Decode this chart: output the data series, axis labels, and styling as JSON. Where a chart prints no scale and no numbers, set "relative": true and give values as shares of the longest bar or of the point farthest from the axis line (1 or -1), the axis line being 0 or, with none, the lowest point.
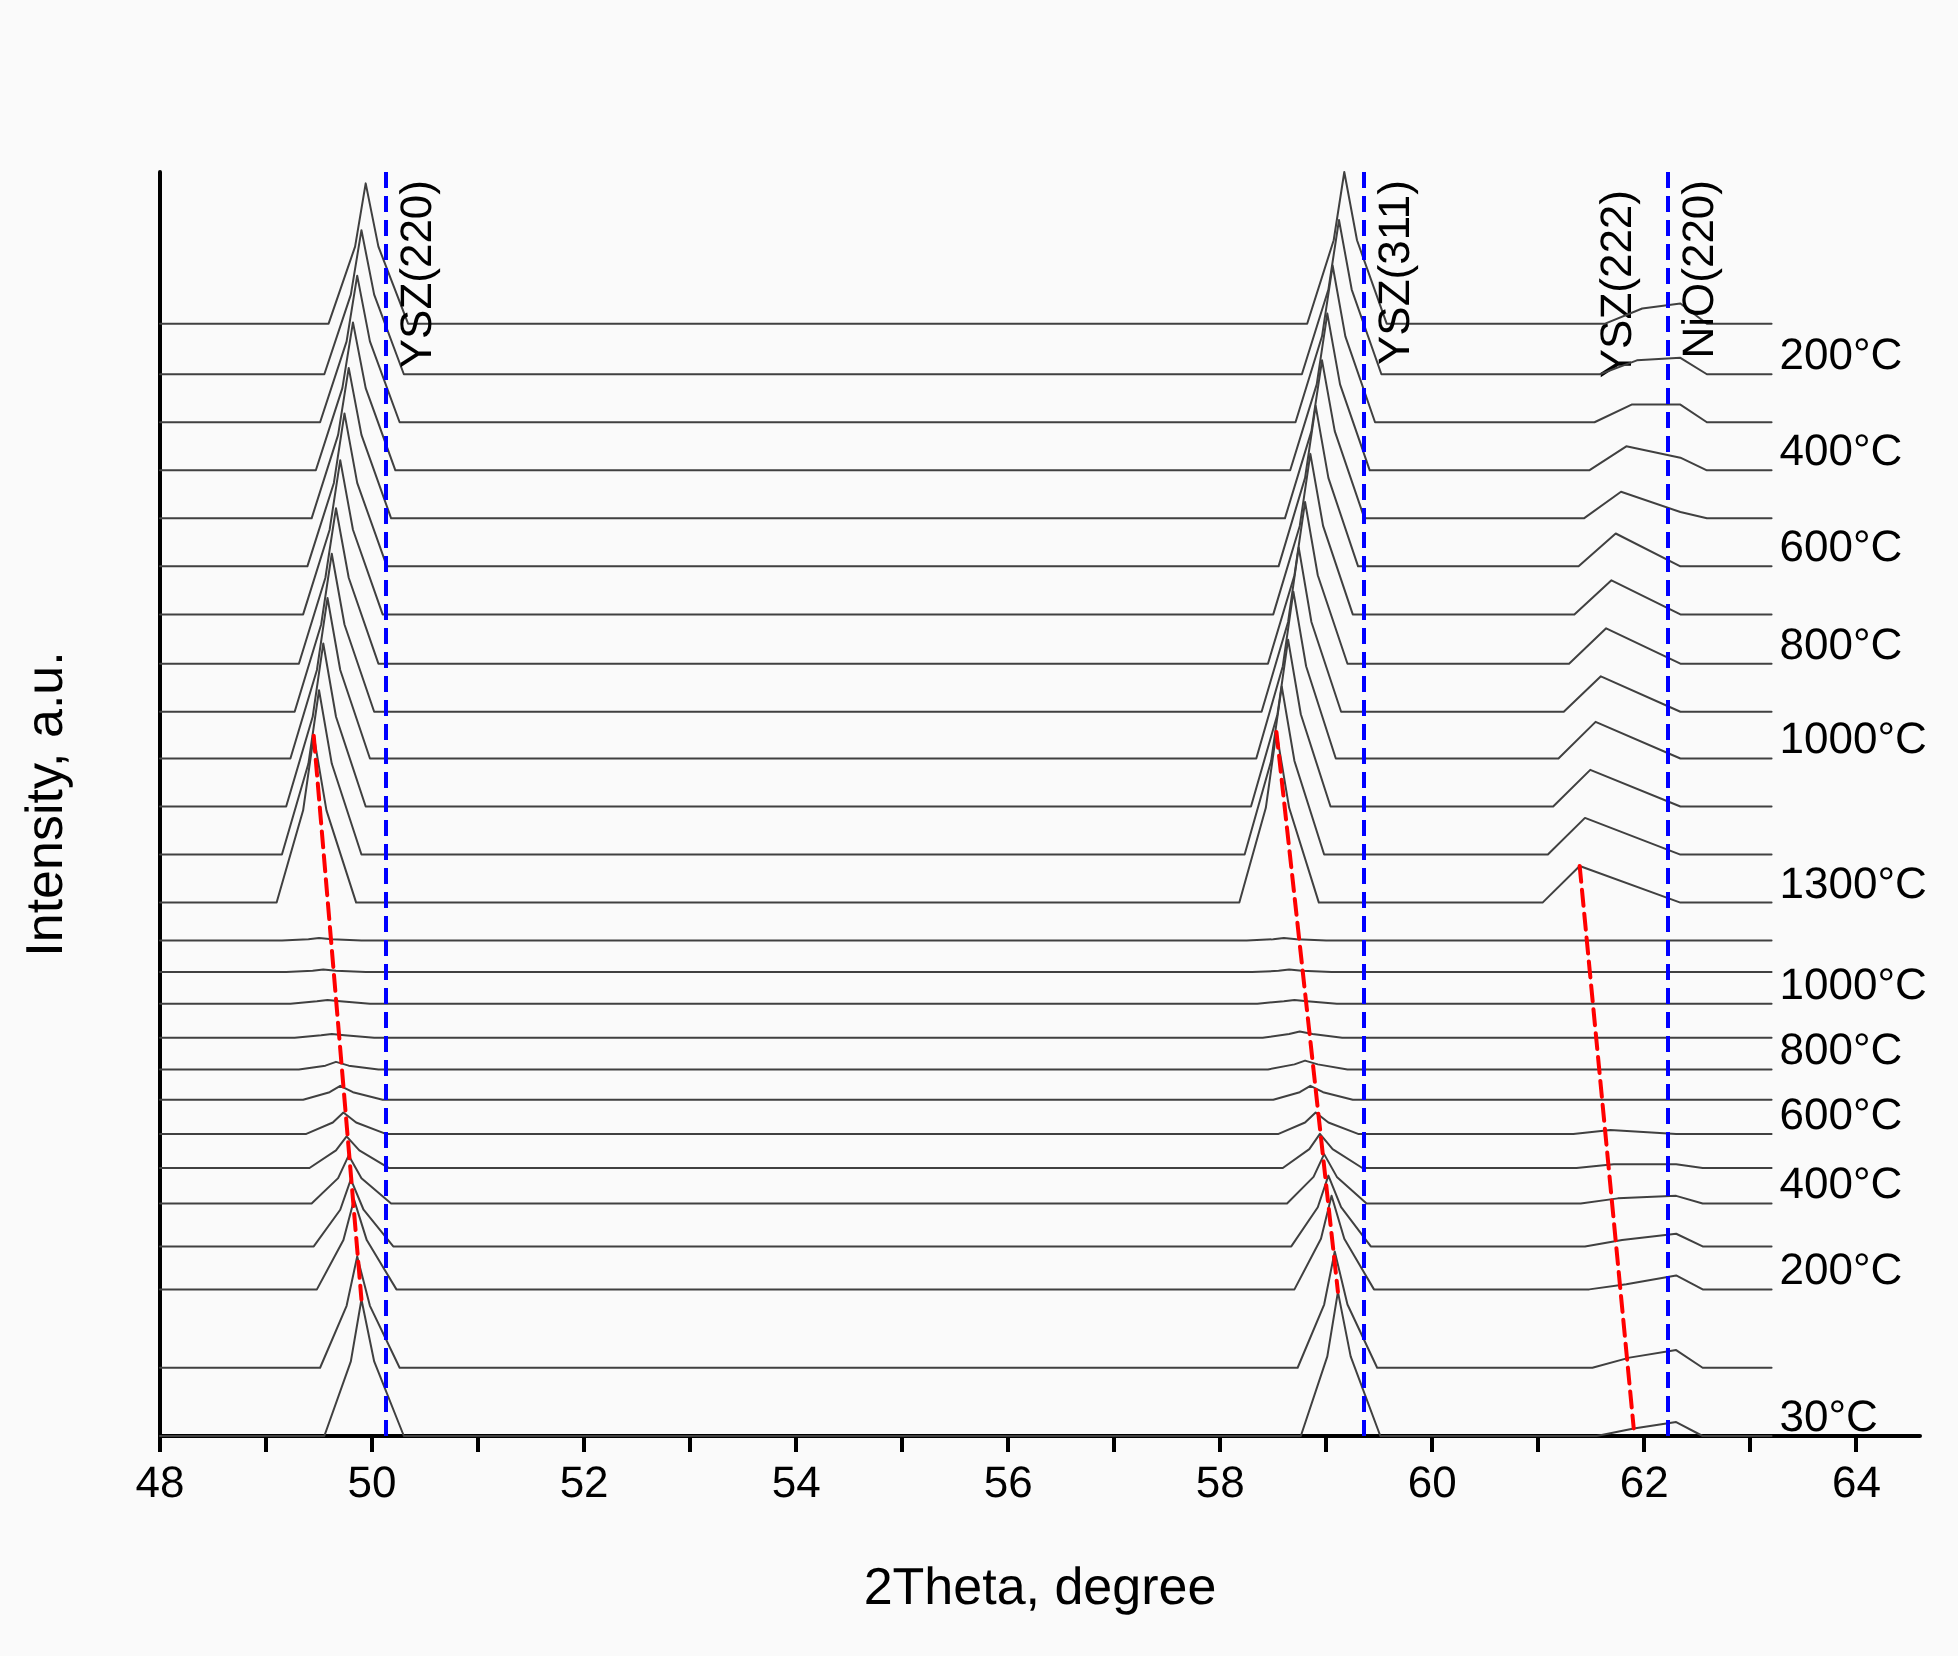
{
  "chart_data": {
    "type": "line",
    "relative": true,
    "xlabel": "2Theta, degree",
    "ylabel": "Intensity, a.u.",
    "xlim": [
      48,
      64.6
    ],
    "xticks": [
      48,
      {
        "value": 49,
        "label": null
      },
      50,
      {
        "value": 51,
        "label": null
      },
      52,
      {
        "value": 53,
        "label": null
      },
      54,
      {
        "value": 55,
        "label": null
      },
      56,
      {
        "value": 57,
        "label": null
      },
      58,
      {
        "value": 59,
        "label": null
      },
      60,
      {
        "value": 61,
        "label": null
      },
      62,
      {
        "value": 63,
        "label": null
      },
      64
    ],
    "grid": false,
    "marker": "none",
    "line_style": "solid",
    "ref_lines": [
      {
        "axis": "x",
        "value": 50.13,
        "label": "YSZ(220)",
        "color": "#0000ff",
        "line_style": "dashed"
      },
      {
        "axis": "x",
        "value": 59.36,
        "label": "YSZ(311)",
        "color": "#0000ff",
        "line_style": "dashed"
      },
      {
        "axis": "x",
        "value": 62.22,
        "label": "NiO(220)",
        "color": "#0000ff",
        "line_style": "dashed"
      }
    ],
    "annotations": [
      "YSZ(222)"
    ],
    "series": [
      {
        "color": "#404040",
        "x": [
          48,
          49.59,
          49.84,
          49.94,
          50.06,
          50.34,
          58.82,
          59.07,
          59.17,
          59.29,
          59.57,
          61.63,
          61.98,
          62.34,
          62.59,
          63.2
        ],
        "values": [
          0.88,
          0.88,
          0.941,
          0.991,
          0.941,
          0.88,
          0.88,
          0.946,
          1.0,
          0.946,
          0.88,
          0.88,
          0.892,
          0.896,
          0.88,
          0.88
        ]
      },
      {
        "name": "200°C",
        "color": "#404040",
        "x": [
          48,
          49.55,
          49.8,
          49.9,
          50.02,
          50.3,
          58.77,
          59.02,
          59.12,
          59.24,
          59.52,
          61.58,
          61.93,
          62.34,
          62.59,
          63.2
        ],
        "values": [
          0.84,
          0.84,
          0.903,
          0.954,
          0.903,
          0.84,
          0.84,
          0.907,
          0.962,
          0.907,
          0.84,
          0.84,
          0.851,
          0.853,
          0.84,
          0.84
        ]
      },
      {
        "color": "#404040",
        "x": [
          48,
          49.51,
          49.76,
          49.86,
          49.98,
          50.26,
          58.71,
          58.96,
          59.06,
          59.18,
          59.46,
          61.53,
          61.88,
          62.34,
          62.59,
          63.2
        ],
        "values": [
          0.802,
          0.802,
          0.866,
          0.918,
          0.866,
          0.802,
          0.802,
          0.87,
          0.926,
          0.87,
          0.802,
          0.802,
          0.816,
          0.816,
          0.802,
          0.802
        ]
      },
      {
        "name": "400°C",
        "color": "#404040",
        "x": [
          48,
          49.47,
          49.72,
          49.82,
          49.94,
          50.22,
          58.66,
          58.91,
          59.01,
          59.13,
          59.41,
          61.48,
          61.83,
          62.34,
          62.59,
          63.2
        ],
        "values": [
          0.764,
          0.764,
          0.829,
          0.881,
          0.829,
          0.764,
          0.764,
          0.832,
          0.888,
          0.832,
          0.764,
          0.764,
          0.783,
          0.774,
          0.764,
          0.764
        ]
      },
      {
        "color": "#404040",
        "x": [
          48,
          49.43,
          49.68,
          49.78,
          49.9,
          50.18,
          58.61,
          58.86,
          58.96,
          59.08,
          59.36,
          61.43,
          61.78,
          62.34,
          62.59,
          63.2
        ],
        "values": [
          0.726,
          0.726,
          0.792,
          0.845,
          0.792,
          0.726,
          0.726,
          0.795,
          0.851,
          0.795,
          0.726,
          0.726,
          0.747,
          0.731,
          0.726,
          0.726
        ]
      },
      {
        "name": "600°C",
        "color": "#404040",
        "x": [
          48,
          49.39,
          49.64,
          49.74,
          49.86,
          50.14,
          58.55,
          58.8,
          58.9,
          59.02,
          59.3,
          61.38,
          61.73,
          62.34,
          62.59,
          63.2
        ],
        "values": [
          0.688,
          0.688,
          0.754,
          0.809,
          0.754,
          0.688,
          0.688,
          0.758,
          0.815,
          0.758,
          0.688,
          0.688,
          0.714,
          0.688,
          0.688,
          0.688
        ]
      },
      {
        "color": "#404040",
        "x": [
          48,
          49.35,
          49.6,
          49.7,
          49.82,
          50.1,
          58.5,
          58.75,
          58.85,
          58.97,
          59.25,
          61.34,
          61.69,
          62.34,
          62.59,
          63.2
        ],
        "values": [
          0.65,
          0.65,
          0.717,
          0.772,
          0.717,
          0.65,
          0.65,
          0.72,
          0.777,
          0.72,
          0.65,
          0.65,
          0.677,
          0.65,
          0.65,
          0.65
        ]
      },
      {
        "name": "800°C",
        "color": "#404040",
        "x": [
          48,
          49.31,
          49.56,
          49.66,
          49.78,
          50.06,
          58.45,
          58.7,
          58.8,
          58.92,
          59.2,
          61.29,
          61.64,
          62.34,
          62.59,
          63.2
        ],
        "values": [
          0.611,
          0.611,
          0.679,
          0.734,
          0.679,
          0.611,
          0.611,
          0.681,
          0.739,
          0.681,
          0.611,
          0.611,
          0.639,
          0.611,
          0.611,
          0.611
        ]
      },
      {
        "color": "#404040",
        "x": [
          48,
          49.27,
          49.52,
          49.62,
          49.74,
          50.02,
          58.39,
          58.64,
          58.74,
          58.86,
          59.14,
          61.24,
          61.59,
          62.34,
          62.59,
          63.2
        ],
        "values": [
          0.573,
          0.573,
          0.642,
          0.698,
          0.642,
          0.573,
          0.573,
          0.644,
          0.703,
          0.644,
          0.573,
          0.573,
          0.601,
          0.573,
          0.573,
          0.573
        ]
      },
      {
        "name": "1000°C",
        "color": "#404040",
        "x": [
          48,
          49.23,
          49.48,
          49.58,
          49.7,
          49.98,
          58.34,
          58.59,
          58.69,
          58.81,
          59.09,
          61.19,
          61.54,
          62.34,
          62.59,
          63.2
        ],
        "values": [
          0.536,
          0.536,
          0.606,
          0.663,
          0.606,
          0.536,
          0.536,
          0.609,
          0.668,
          0.609,
          0.536,
          0.536,
          0.565,
          0.536,
          0.536,
          0.536
        ]
      },
      {
        "color": "#404040",
        "x": [
          48,
          49.19,
          49.44,
          49.54,
          49.66,
          49.94,
          58.29,
          58.54,
          58.64,
          58.76,
          59.04,
          61.14,
          61.49,
          62.34,
          62.59,
          63.2
        ],
        "values": [
          0.498,
          0.498,
          0.569,
          0.627,
          0.569,
          0.498,
          0.498,
          0.571,
          0.63,
          0.571,
          0.498,
          0.498,
          0.527,
          0.498,
          0.498,
          0.498
        ]
      },
      {
        "color": "#404040",
        "x": [
          48,
          49.15,
          49.4,
          49.5,
          49.62,
          49.9,
          58.23,
          58.48,
          58.58,
          58.7,
          58.98,
          61.09,
          61.44,
          62.34,
          62.59,
          63.2
        ],
        "values": [
          0.46,
          0.46,
          0.532,
          0.59,
          0.532,
          0.46,
          0.46,
          0.534,
          0.593,
          0.534,
          0.46,
          0.46,
          0.489,
          0.46,
          0.46,
          0.46
        ]
      },
      {
        "name": "1300°C",
        "color": "#404040",
        "x": [
          48,
          49.1,
          49.35,
          49.45,
          49.57,
          49.85,
          58.18,
          58.43,
          58.53,
          58.65,
          58.93,
          61.04,
          61.39,
          62.34,
          62.59,
          63.2
        ],
        "values": [
          0.422,
          0.422,
          0.495,
          0.554,
          0.495,
          0.422,
          0.422,
          0.497,
          0.557,
          0.497,
          0.422,
          0.422,
          0.451,
          0.422,
          0.422,
          0.422
        ]
      },
      {
        "color": "#404040",
        "x": [
          48,
          49.15,
          49.4,
          49.5,
          49.62,
          49.9,
          58.25,
          58.5,
          58.6,
          58.72,
          59.0,
          61.1,
          61.45,
          62.3,
          62.55,
          63.2
        ],
        "values": [
          0.392,
          0.392,
          0.393,
          0.394,
          0.393,
          0.392,
          0.392,
          0.393,
          0.394,
          0.393,
          0.392,
          0.392,
          0.392,
          0.392,
          0.392,
          0.392
        ]
      },
      {
        "color": "#404040",
        "x": [
          48,
          49.19,
          49.44,
          49.54,
          49.66,
          49.94,
          58.3,
          58.55,
          58.65,
          58.77,
          59.05,
          61.14,
          61.49,
          62.3,
          62.55,
          63.2
        ],
        "values": [
          0.367,
          0.367,
          0.368,
          0.369,
          0.368,
          0.367,
          0.367,
          0.368,
          0.369,
          0.368,
          0.367,
          0.367,
          0.367,
          0.367,
          0.367,
          0.367
        ]
      },
      {
        "name": "1000°C",
        "color": "#404040",
        "x": [
          48,
          49.23,
          49.48,
          49.58,
          49.7,
          49.98,
          58.35,
          58.6,
          58.7,
          58.82,
          59.1,
          61.18,
          61.53,
          62.3,
          62.55,
          63.2
        ],
        "values": [
          0.342,
          0.342,
          0.344,
          0.345,
          0.344,
          0.342,
          0.342,
          0.344,
          0.345,
          0.344,
          0.342,
          0.342,
          0.342,
          0.342,
          0.342,
          0.342
        ]
      },
      {
        "color": "#404040",
        "x": [
          48,
          49.27,
          49.52,
          49.62,
          49.74,
          50.02,
          58.4,
          58.65,
          58.75,
          58.87,
          59.15,
          61.21,
          61.56,
          62.3,
          62.55,
          63.2
        ],
        "values": [
          0.315,
          0.315,
          0.317,
          0.318,
          0.317,
          0.315,
          0.315,
          0.318,
          0.32,
          0.318,
          0.315,
          0.315,
          0.315,
          0.315,
          0.315,
          0.315
        ]
      },
      {
        "name": "800°C",
        "color": "#404040",
        "x": [
          48,
          49.31,
          49.56,
          49.66,
          49.78,
          50.06,
          58.45,
          58.7,
          58.8,
          58.92,
          59.2,
          61.25,
          61.6,
          62.3,
          62.55,
          63.2
        ],
        "values": [
          0.29,
          0.29,
          0.293,
          0.296,
          0.293,
          0.29,
          0.29,
          0.294,
          0.297,
          0.294,
          0.29,
          0.29,
          0.29,
          0.29,
          0.29,
          0.29
        ]
      },
      {
        "color": "#404040",
        "x": [
          48,
          49.35,
          49.6,
          49.7,
          49.82,
          50.1,
          58.5,
          58.75,
          58.85,
          58.97,
          59.25,
          61.29,
          61.64,
          62.3,
          62.55,
          63.2
        ],
        "values": [
          0.266,
          0.266,
          0.272,
          0.277,
          0.272,
          0.266,
          0.266,
          0.272,
          0.277,
          0.272,
          0.266,
          0.266,
          0.266,
          0.266,
          0.266,
          0.266
        ]
      },
      {
        "name": "600°C",
        "color": "#404040",
        "x": [
          48,
          49.38,
          49.63,
          49.73,
          49.85,
          50.13,
          58.55,
          58.8,
          58.9,
          59.02,
          59.3,
          61.33,
          61.68,
          62.3,
          62.55,
          63.2
        ],
        "values": [
          0.239,
          0.239,
          0.248,
          0.256,
          0.248,
          0.239,
          0.239,
          0.248,
          0.256,
          0.248,
          0.239,
          0.239,
          0.242,
          0.239,
          0.239,
          0.239
        ]
      },
      {
        "color": "#404040",
        "x": [
          48,
          49.41,
          49.66,
          49.76,
          49.88,
          50.16,
          58.59,
          58.84,
          58.94,
          59.06,
          59.34,
          61.36,
          61.71,
          62.3,
          62.55,
          63.2
        ],
        "values": [
          0.212,
          0.212,
          0.226,
          0.237,
          0.226,
          0.212,
          0.212,
          0.227,
          0.239,
          0.227,
          0.212,
          0.212,
          0.215,
          0.215,
          0.212,
          0.212
        ]
      },
      {
        "name": "400°C",
        "color": "#404040",
        "x": [
          48,
          49.43,
          49.68,
          49.78,
          49.9,
          50.18,
          58.63,
          58.88,
          58.98,
          59.1,
          59.38,
          61.4,
          61.75,
          62.3,
          62.55,
          63.2
        ],
        "values": [
          0.184,
          0.184,
          0.204,
          0.222,
          0.204,
          0.184,
          0.184,
          0.205,
          0.223,
          0.205,
          0.184,
          0.184,
          0.188,
          0.19,
          0.184,
          0.184
        ]
      },
      {
        "color": "#404040",
        "x": [
          48,
          49.45,
          49.7,
          49.8,
          49.92,
          50.2,
          58.67,
          58.92,
          59.02,
          59.14,
          59.42,
          61.44,
          61.79,
          62.3,
          62.55,
          63.2
        ],
        "values": [
          0.15,
          0.15,
          0.179,
          0.203,
          0.179,
          0.15,
          0.15,
          0.181,
          0.206,
          0.181,
          0.15,
          0.15,
          0.155,
          0.16,
          0.15,
          0.15
        ]
      },
      {
        "name": "200°C",
        "color": "#404040",
        "x": [
          48,
          49.48,
          49.73,
          49.83,
          49.95,
          50.23,
          58.7,
          58.95,
          59.05,
          59.17,
          59.45,
          61.48,
          61.83,
          62.3,
          62.55,
          63.2
        ],
        "values": [
          0.116,
          0.116,
          0.155,
          0.187,
          0.155,
          0.116,
          0.116,
          0.156,
          0.19,
          0.156,
          0.116,
          0.116,
          0.12,
          0.127,
          0.116,
          0.116
        ]
      },
      {
        "color": "#404040",
        "x": [
          48,
          49.51,
          49.76,
          49.86,
          49.98,
          50.26,
          58.73,
          58.98,
          59.08,
          59.2,
          59.48,
          61.51,
          61.86,
          62.3,
          62.55,
          63.2
        ],
        "values": [
          0.054,
          0.054,
          0.103,
          0.142,
          0.103,
          0.054,
          0.054,
          0.104,
          0.146,
          0.104,
          0.054,
          0.054,
          0.062,
          0.068,
          0.054,
          0.054
        ]
      },
      {
        "name": "30°C",
        "color": "#404040",
        "x": [
          48,
          49.55,
          49.8,
          49.9,
          50.02,
          50.3,
          58.76,
          59.01,
          59.11,
          59.23,
          59.51,
          61.55,
          61.9,
          62.3,
          62.55,
          63.2
        ],
        "values": [
          0,
          0,
          0.059,
          0.108,
          0.059,
          0,
          0,
          0.063,
          0.114,
          0.063,
          0,
          0,
          0.006,
          0.011,
          0,
          0
        ]
      },
      {
        "type": "line",
        "color": "#ff0000",
        "line_style": "dashed",
        "x": [
          49.45,
          49.9
        ],
        "values": [
          0.554,
          0.108
        ]
      },
      {
        "type": "line",
        "color": "#ff0000",
        "line_style": "dashed",
        "x": [
          58.53,
          59.11
        ],
        "values": [
          0.557,
          0.114
        ]
      },
      {
        "type": "line",
        "color": "#ff0000",
        "line_style": "dashed",
        "x": [
          61.39,
          61.9
        ],
        "values": [
          0.451,
          0.006
        ]
      }
    ]
  }
}
